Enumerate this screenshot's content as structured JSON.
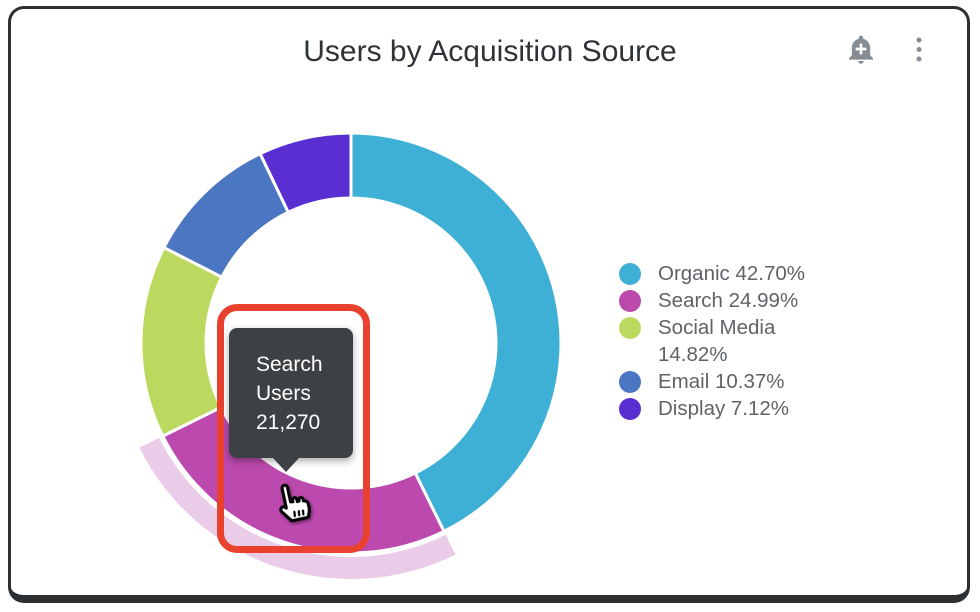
{
  "header": {
    "title": "Users by Acquisition Source",
    "icons": [
      {
        "name": "add-alert-icon"
      },
      {
        "name": "more-vert-icon"
      }
    ],
    "icon_color": "#858C92"
  },
  "chart_data": {
    "type": "pie",
    "subtype": "donut",
    "title": "Users by Acquisition Source",
    "unit": "Users",
    "legend_position": "right",
    "donut_hole": true,
    "hover_halo_color": "#EBCCE8",
    "slices": [
      {
        "label": "Organic",
        "percent": 42.7,
        "color": "#3EB0D5"
      },
      {
        "label": "Search",
        "percent": 24.99,
        "color": "#BC49AE",
        "value": 21270,
        "state": "hovered"
      },
      {
        "label": "Social Media",
        "percent": 14.82,
        "color": "#BCD95F"
      },
      {
        "label": "Email",
        "percent": 10.37,
        "color": "#4B76C2"
      },
      {
        "label": "Display",
        "percent": 7.12,
        "color": "#5A2FD1"
      }
    ]
  },
  "tooltip": {
    "label": "Search Users",
    "value": "21,270",
    "background": "#3E4144"
  },
  "annotation": {
    "highlight_color": "#E8422E",
    "cursor": "hand-pointer"
  }
}
